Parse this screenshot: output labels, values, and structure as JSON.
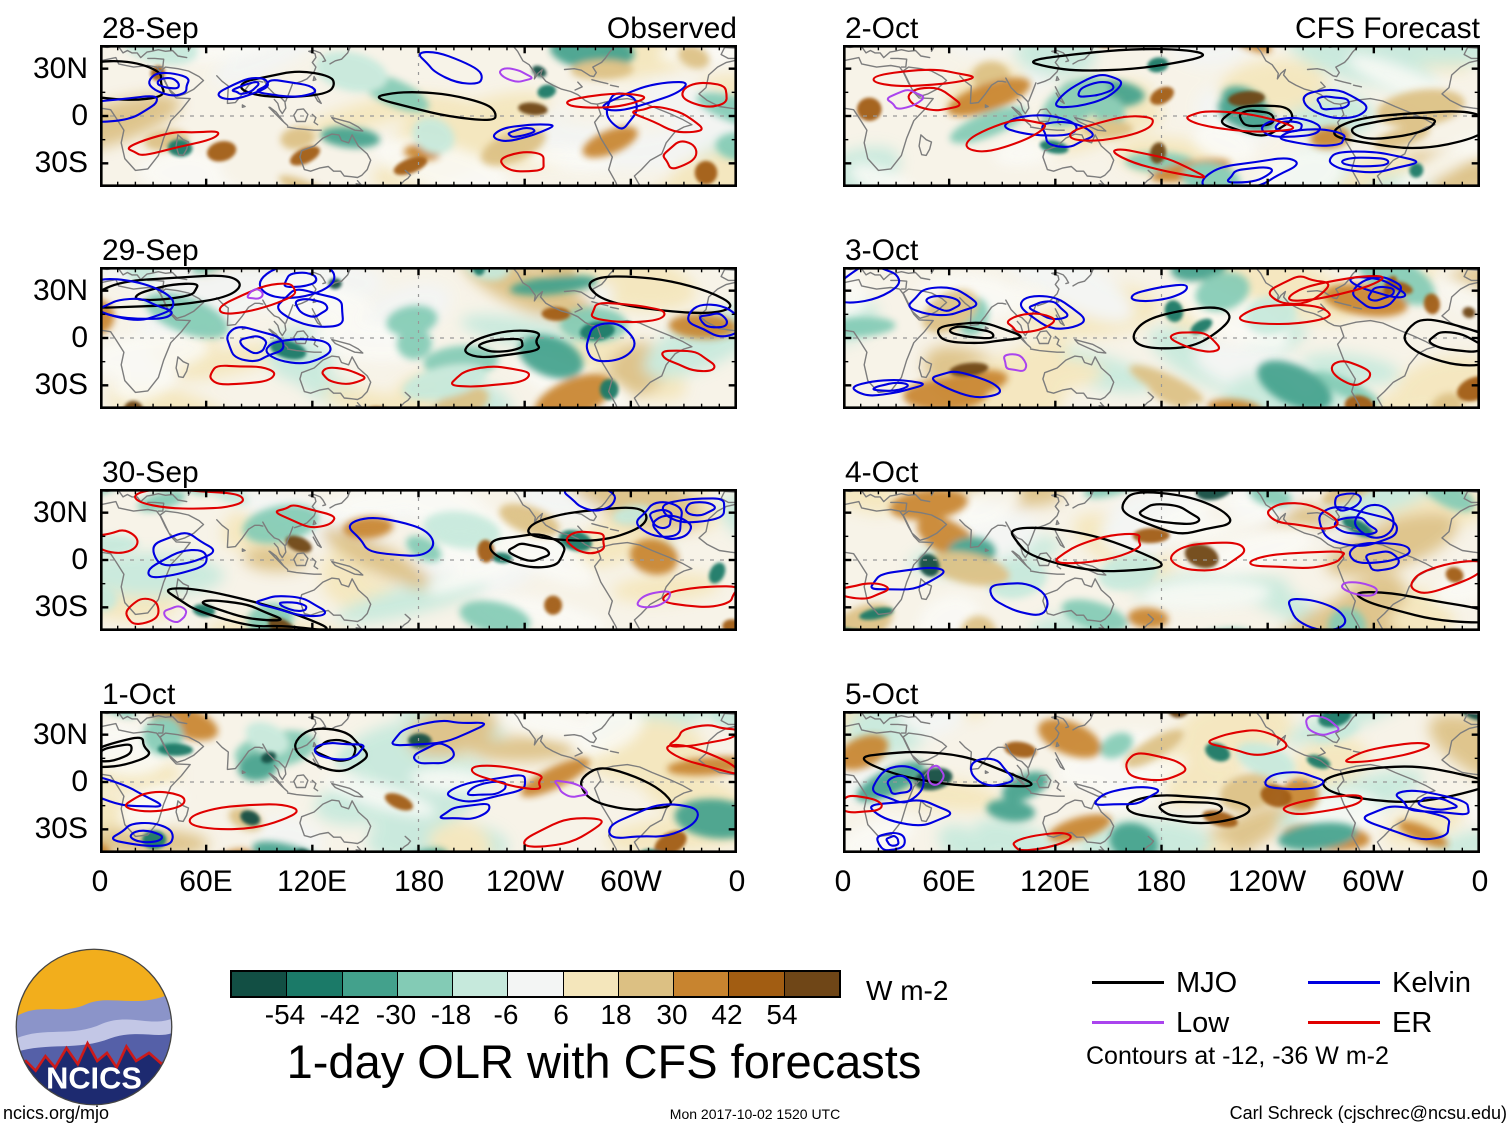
{
  "figure": {
    "title": "1-day OLR with CFS forecasts",
    "columns": [
      {
        "header": "Observed",
        "panels": [
          {
            "date": "28-Sep"
          },
          {
            "date": "29-Sep"
          },
          {
            "date": "30-Sep"
          },
          {
            "date": "1-Oct"
          }
        ]
      },
      {
        "header": "CFS Forecast",
        "panels": [
          {
            "date": "2-Oct"
          },
          {
            "date": "3-Oct"
          },
          {
            "date": "4-Oct"
          },
          {
            "date": "5-Oct"
          }
        ]
      }
    ],
    "axes": {
      "y_ticks": [
        "30N",
        "0",
        "30S"
      ],
      "x_ticks": [
        "0",
        "60E",
        "120E",
        "180",
        "120W",
        "60W",
        "0"
      ]
    }
  },
  "colorbar": {
    "tick_labels": [
      "-54",
      "-42",
      "-30",
      "-18",
      "-6",
      "6",
      "18",
      "30",
      "42",
      "54"
    ],
    "unit": "W m-2",
    "colors": [
      "#124f44",
      "#1b7a68",
      "#43a18c",
      "#83cbb5",
      "#c6e9dc",
      "#f3f5f4",
      "#f4e6bb",
      "#dcc083",
      "#c8842f",
      "#a25d12",
      "#6f4617"
    ]
  },
  "legend": {
    "items": [
      {
        "label": "MJO",
        "color": "#000000"
      },
      {
        "label": "Kelvin",
        "color": "#0000e0"
      },
      {
        "label": "Low",
        "color": "#aa44ee"
      },
      {
        "label": "ER",
        "color": "#e00000"
      }
    ],
    "note": "Contours at -12, -36 W m-2"
  },
  "logo": {
    "text": "NCICS"
  },
  "footer": {
    "left": "ncics.org/mjo",
    "center": "Mon 2017-10-02 1520 UTC",
    "right": "Carl Schreck (cjschrec@ncsu.edu)"
  },
  "map_style": {
    "background": "#f7f3e8",
    "coastline": "#7d7d7d",
    "dash": "#999999"
  },
  "chart_data": {
    "type": "heatmap",
    "title": "1-day OLR with CFS forecasts",
    "unit": "W m-2",
    "columns": [
      {
        "header": "Observed",
        "dates": [
          "28-Sep",
          "29-Sep",
          "30-Sep",
          "1-Oct"
        ]
      },
      {
        "header": "CFS Forecast",
        "dates": [
          "2-Oct",
          "3-Oct",
          "4-Oct",
          "5-Oct"
        ]
      }
    ],
    "x_ticks": [
      "0",
      "60E",
      "120E",
      "180",
      "120W",
      "60W",
      "0"
    ],
    "y_ticks": [
      "30N",
      "0",
      "30S"
    ],
    "fill_levels": [
      -54,
      -42,
      -30,
      -18,
      -6,
      6,
      18,
      30,
      42,
      54
    ],
    "fill_colors": [
      "#124f44",
      "#1b7a68",
      "#43a18c",
      "#83cbb5",
      "#c6e9dc",
      "#f3f5f4",
      "#f4e6bb",
      "#dcc083",
      "#c8842f",
      "#a25d12",
      "#6f4617"
    ],
    "contour_levels": [
      -12,
      -36
    ],
    "overlays": [
      "MJO",
      "Kelvin",
      "Low",
      "ER"
    ],
    "legend_note": "Contours at -12, -36 W m-2"
  }
}
